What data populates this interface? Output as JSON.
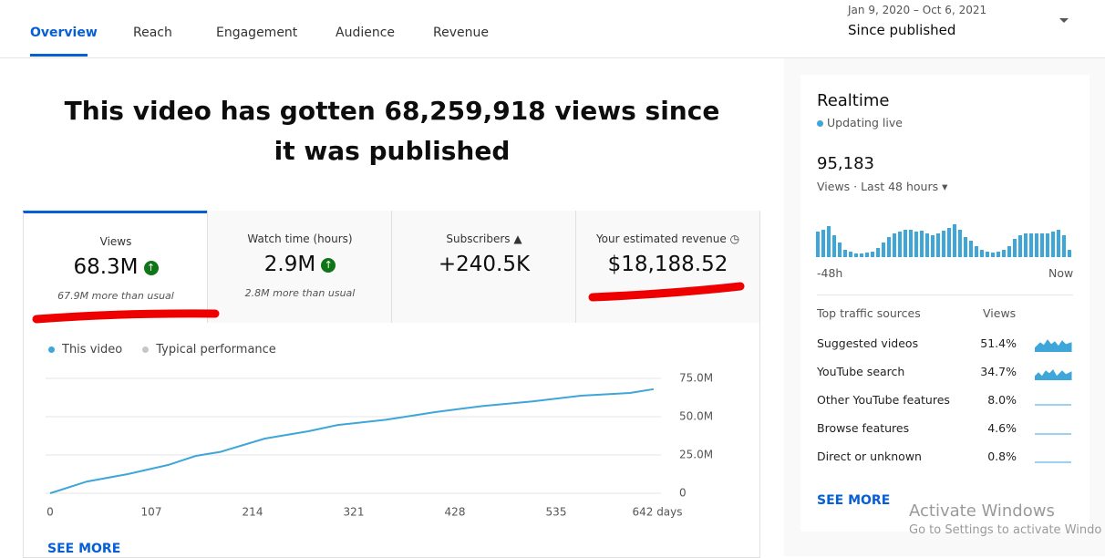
{
  "tabs": [
    "Overview",
    "Reach",
    "Engagement",
    "Audience",
    "Revenue"
  ],
  "date_range": {
    "dates": "Jan 9, 2020 – Oct 6, 2021",
    "label": "Since published"
  },
  "headline": "This video has gotten 68,259,918 views since it was published",
  "metrics": [
    {
      "label": "Views",
      "value": "68.3M",
      "note": "67.9M more than usual"
    },
    {
      "label": "Watch time (hours)",
      "value": "2.9M",
      "note": "2.8M more than usual"
    },
    {
      "label": "Subscribers",
      "value": "+240.5K"
    },
    {
      "label": "Your estimated revenue",
      "value": "$18,188.52"
    }
  ],
  "chart_data": {
    "type": "line",
    "x": [
      0,
      39,
      82,
      125,
      154,
      180,
      227,
      273,
      304,
      355,
      407,
      458,
      510,
      561,
      613,
      638
    ],
    "series": [
      {
        "name": "This video",
        "color": "#3ea6d8",
        "values": [
          0,
          7700000,
          12500000,
          18500000,
          24400000,
          27000000,
          35700000,
          40500000,
          44600000,
          48000000,
          53000000,
          57000000,
          60000000,
          63700000,
          65500000,
          68000000
        ]
      },
      {
        "name": "Typical performance",
        "color": "#c6c6c6",
        "values": [
          null,
          null,
          null,
          null,
          null,
          null,
          null,
          null,
          null,
          null,
          null,
          null,
          null,
          null,
          null,
          null
        ]
      }
    ],
    "xlim": [
      0,
      642
    ],
    "xticks": [
      0,
      107,
      214,
      321,
      428,
      535,
      {
        "value": 642,
        "label": "642 days"
      }
    ],
    "ylim": [
      0,
      75000000
    ],
    "yticks": [
      0,
      {
        "value": 25000000,
        "label": "25.0M"
      },
      {
        "value": 50000000,
        "label": "50.0M"
      },
      {
        "value": 75000000,
        "label": "75.0M"
      }
    ],
    "grid": true
  },
  "see_more": "SEE MORE",
  "realtime": {
    "title": "Realtime",
    "status": "Updating live",
    "count": "95,183",
    "period": "Views · Last 48 hours",
    "start": "-48h",
    "end": "Now",
    "table": {
      "header": [
        "Top traffic sources",
        "Views"
      ],
      "rows": [
        [
          "Suggested videos",
          "51.4%"
        ],
        [
          "YouTube search",
          "34.7%"
        ],
        [
          "Other YouTube features",
          "8.0%"
        ],
        [
          "Browse features",
          "4.6%"
        ],
        [
          "Direct or unknown",
          "0.8%"
        ]
      ]
    },
    "see_more": "SEE MORE"
  },
  "watermark": {
    "title": "Activate Windows",
    "text": "Go to Settings to activate Windo"
  }
}
